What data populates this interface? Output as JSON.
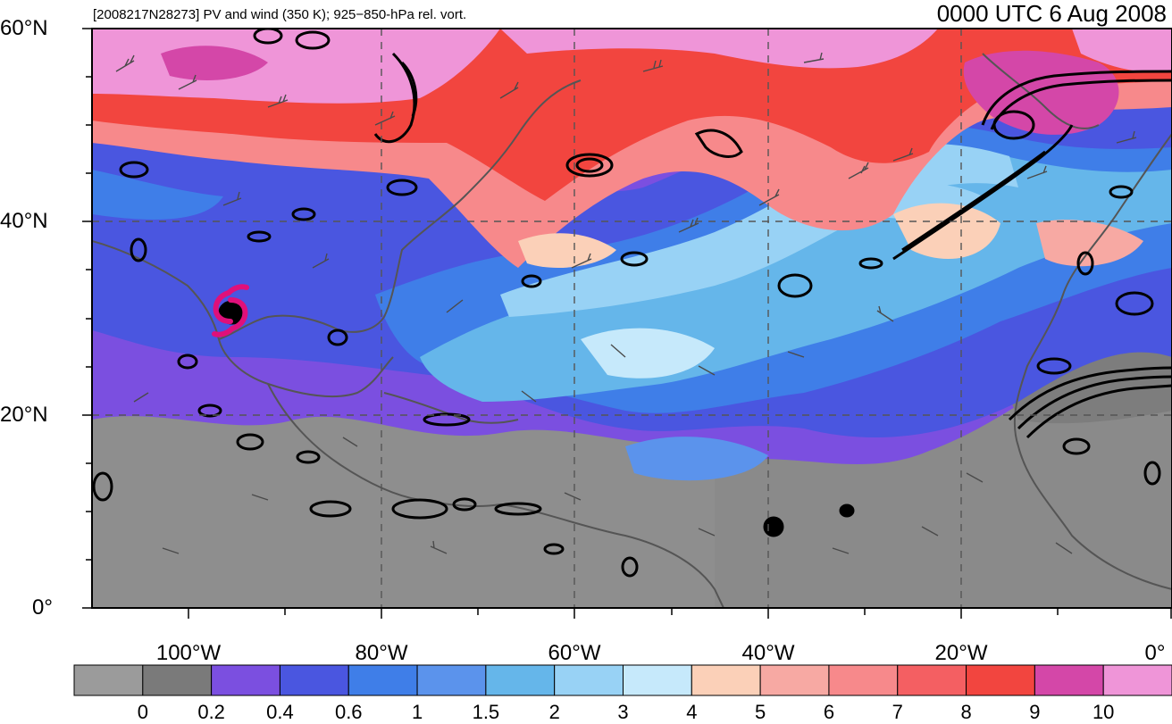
{
  "header": {
    "left_title": "[2008217N28273] PV and wind (350 K); 925−850-hPa rel. vort.",
    "right_title": "0000 UTC 6 Aug 2008"
  },
  "map": {
    "lat_labels": [
      "60°N",
      "40°N",
      "20°N",
      "0°"
    ],
    "lon_labels": [
      "100°W",
      "80°W",
      "60°W",
      "40°W",
      "20°W",
      "0°"
    ],
    "grid_lines": "dashed",
    "storm_symbol": "tropical-cyclone-icon",
    "storm_color": "#e0107a"
  },
  "colorbar": {
    "labels": [
      "0",
      "0.2",
      "0.4",
      "0.6",
      "1",
      "1.5",
      "2",
      "3",
      "4",
      "5",
      "6",
      "7",
      "8",
      "9",
      "10"
    ],
    "colors": [
      "#9b9b9b",
      "#7a7a7a",
      "#7b4fe0",
      "#4a56e0",
      "#3f7ee8",
      "#5b93ec",
      "#65b6ea",
      "#98d2f5",
      "#c6e9fb",
      "#fbd0b8",
      "#f7a9a3",
      "#f7898b",
      "#f45f62",
      "#f2453f",
      "#d447a8",
      "#ef95d8"
    ]
  }
}
